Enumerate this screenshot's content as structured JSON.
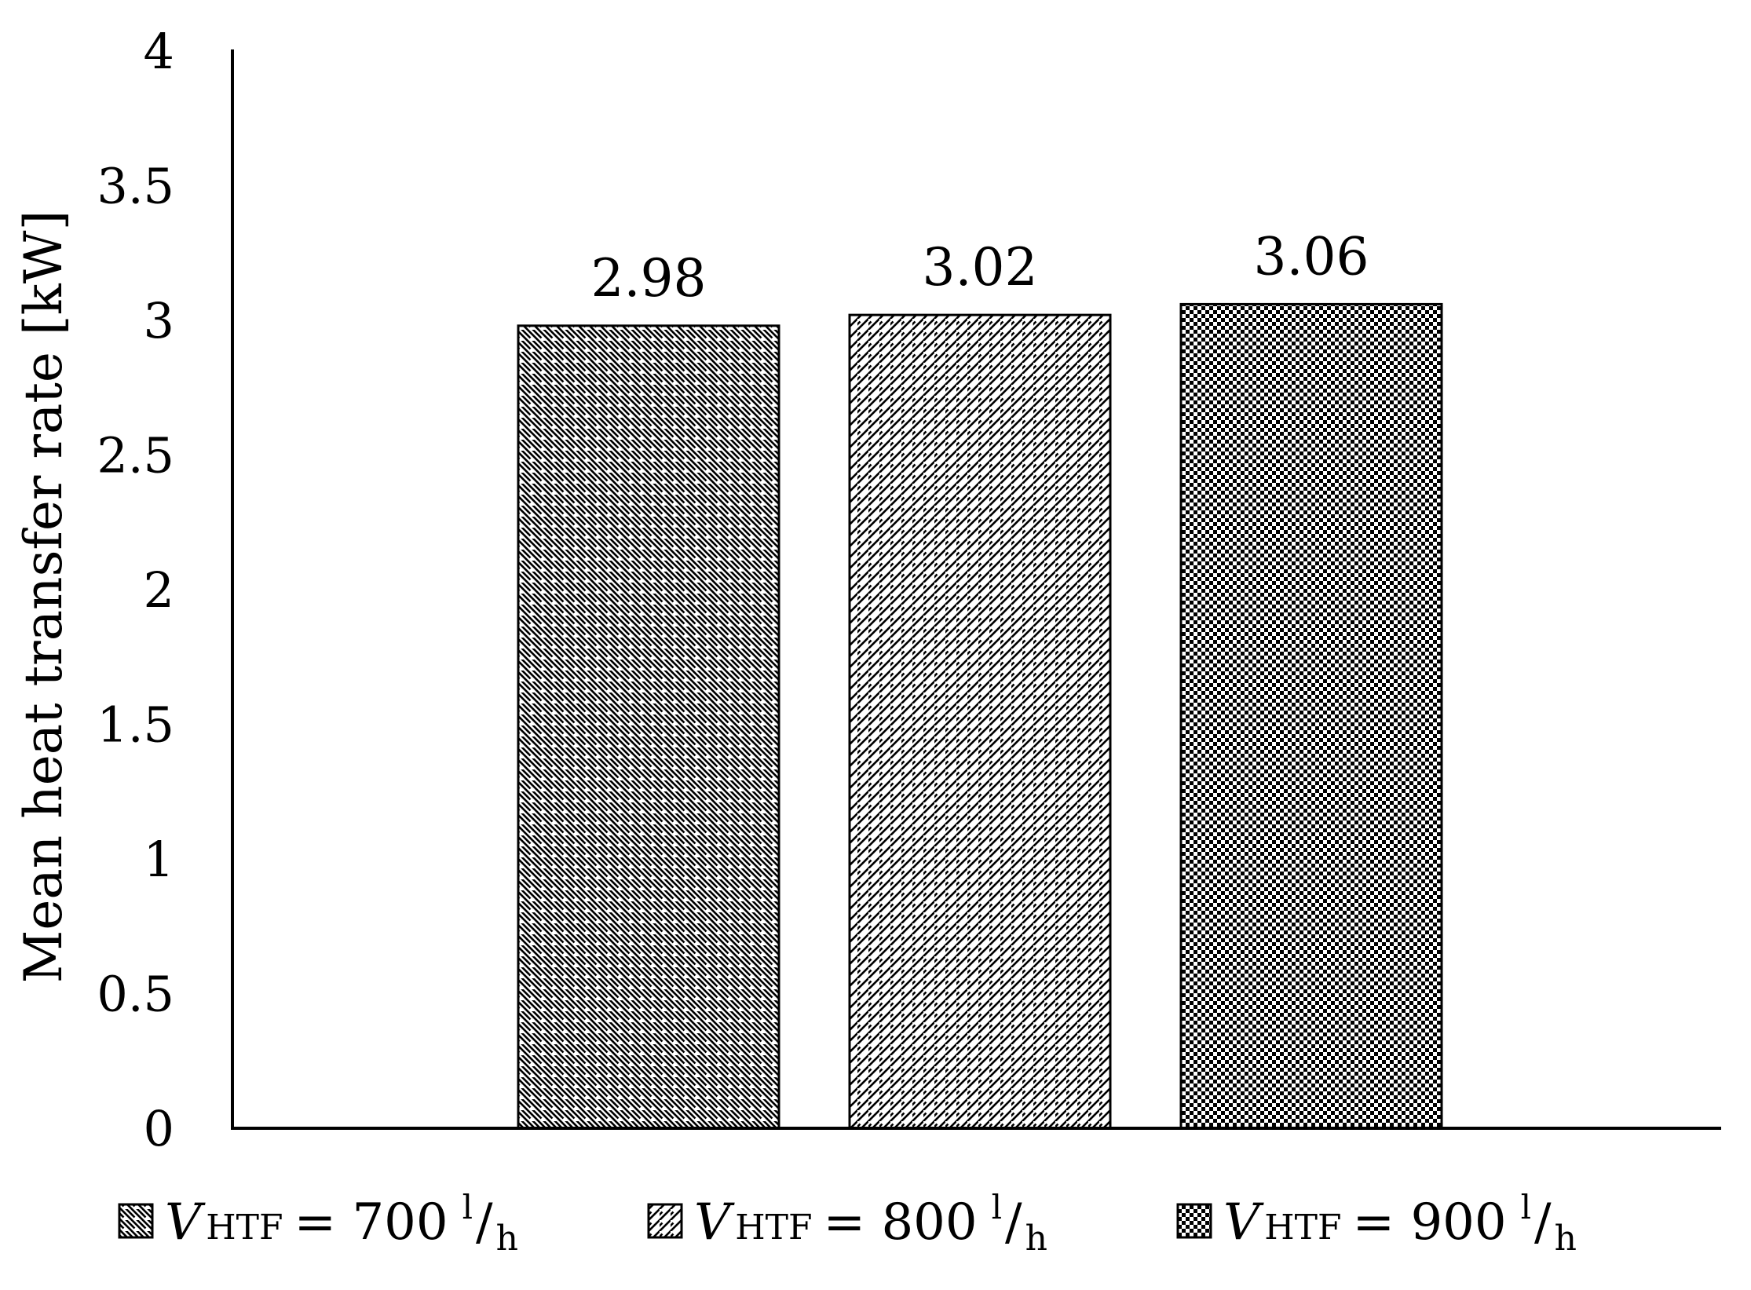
{
  "chart_data": {
    "type": "bar",
    "title": "",
    "xlabel": "",
    "ylabel": "Mean heat transfer rate [kW]",
    "ylim": [
      0,
      4
    ],
    "yticks": [
      "0",
      "0.5",
      "1",
      "1.5",
      "2",
      "2.5",
      "3",
      "3.5",
      "4"
    ],
    "grid": false,
    "legend_position": "bottom",
    "series": [
      {
        "name_parts": {
          "symbol": "V",
          "subscript": "HTF",
          "relation": "= 700",
          "unit_num": "l",
          "unit_den": "h"
        },
        "value": 2.98,
        "label": "2.98",
        "pattern": "diagonal-down"
      },
      {
        "name_parts": {
          "symbol": "V",
          "subscript": "HTF",
          "relation": "= 800",
          "unit_num": "l",
          "unit_den": "h"
        },
        "value": 3.02,
        "label": "3.02",
        "pattern": "diagonal-up"
      },
      {
        "name_parts": {
          "symbol": "V",
          "subscript": "HTF",
          "relation": "= 900",
          "unit_num": "l",
          "unit_den": "h"
        },
        "value": 3.06,
        "label": "3.06",
        "pattern": "checker"
      }
    ],
    "colors": {
      "stroke": "#000000",
      "fill": "#ffffff"
    }
  }
}
